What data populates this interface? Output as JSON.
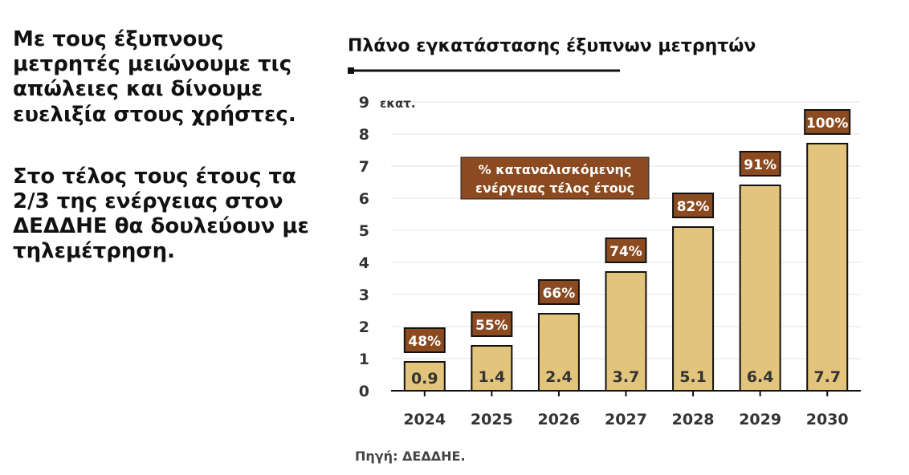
{
  "left_text": {
    "paragraph1": "Με τους έξυπνους μετρητές μειώνουμε τις απώλειες και δίνουμε ευελιξία στους χρήστες.",
    "paragraph2": "Στο τέλος τους έτους τα 2/3 της ενέργειας στον ΔΕΔΔΗΕ θα δουλεύουν με τηλεμέτρηση."
  },
  "chart_data": {
    "type": "bar",
    "title": "Πλάνο εγκατάστασης έξυπνων μετρητών",
    "ylabel": "εκατ.",
    "ylim": [
      0,
      9
    ],
    "yticks": [
      0,
      1,
      2,
      3,
      4,
      5,
      6,
      7,
      8,
      9
    ],
    "categories": [
      "2024",
      "2025",
      "2026",
      "2027",
      "2028",
      "2029",
      "2030"
    ],
    "values": [
      0.9,
      1.4,
      2.4,
      3.7,
      5.1,
      6.4,
      7.7
    ],
    "value_labels": [
      "0.9",
      "1.4",
      "2.4",
      "3.7",
      "5.1",
      "6.4",
      "7.7"
    ],
    "percent_labels": [
      "48%",
      "55%",
      "66%",
      "74%",
      "82%",
      "91%",
      "100%"
    ],
    "annotation": [
      "% καταναλισκόμενης",
      "ενέργειας τέλος έτους"
    ],
    "source": "Πηγή: ΔΕΔΔΗΕ.",
    "grid": true,
    "colors": {
      "bar": "#e2c47c",
      "label_box": "#8b4a1f",
      "label_text": "#ffffff"
    }
  }
}
